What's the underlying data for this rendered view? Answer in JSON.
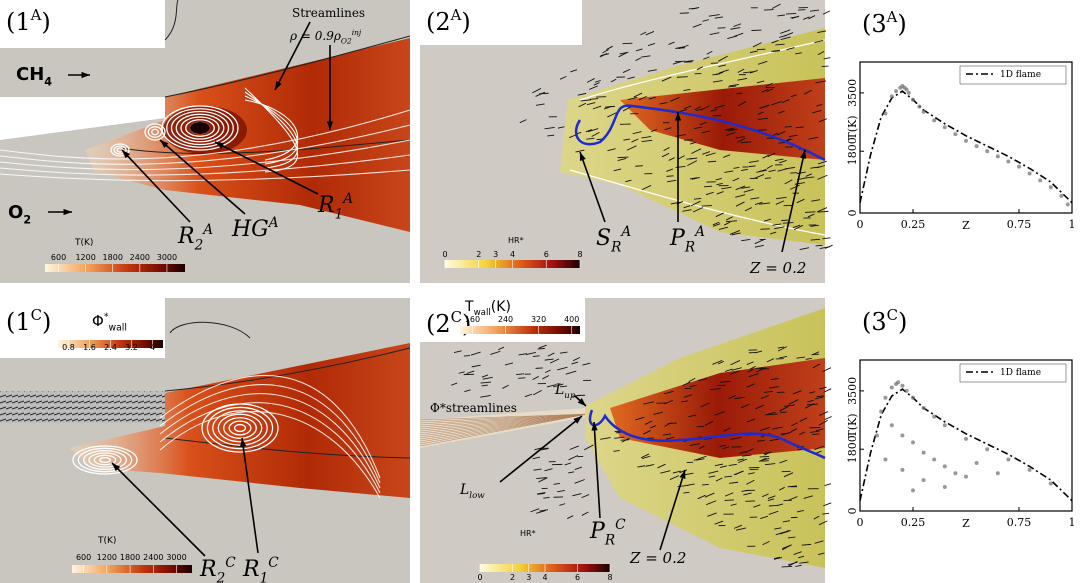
{
  "panels": [
    {
      "label": {
        "base": "(1",
        "sup": "A",
        "tail": ")"
      },
      "annotations": [
        {
          "base": "Streamlines"
        },
        {
          "base": "ρ = 0.9ρ",
          "sub": "O2",
          "sup": "inj"
        },
        {
          "base": "CH",
          "sub": "4"
        },
        {
          "base": "O",
          "sub": "2"
        },
        {
          "base": "R",
          "sub": "2",
          "sup": "A"
        },
        {
          "base": "HG",
          "sup": "A"
        },
        {
          "base": "R",
          "sub": "1",
          "sup": "A"
        }
      ],
      "colorbars": [
        {
          "title": {
            "base": "T(K)"
          },
          "lim": [
            300,
            3400
          ],
          "ticks": [
            600,
            1200,
            1800,
            2400,
            3000
          ]
        }
      ]
    },
    {
      "label": {
        "base": "(2",
        "sup": "A",
        "tail": ")"
      },
      "annotations": [
        {
          "base": "S",
          "sub": "R",
          "sup": "A"
        },
        {
          "base": "P",
          "sub": "R",
          "sup": "A"
        },
        {
          "base": "Z = 0.2"
        }
      ],
      "colorbars": [
        {
          "title": {
            "base": "HR*"
          },
          "lim": [
            0,
            8
          ],
          "ticks": [
            0,
            2,
            3,
            4,
            6,
            8
          ]
        }
      ]
    },
    {
      "label": {
        "base": "(1",
        "sup": "C",
        "tail": ")"
      },
      "annotations": [
        {
          "base": "R",
          "sub": "2",
          "sup": "C"
        },
        {
          "base": "R",
          "sub": "1",
          "sup": "C"
        }
      ],
      "colorbars": [
        {
          "title": {
            "base": "Φ",
            "sup": "*",
            "sub": "wall"
          },
          "lim": [
            0.4,
            4.4
          ],
          "ticks": [
            0.8,
            1.6,
            2.4,
            3.2,
            4
          ]
        },
        {
          "title": {
            "base": "T(K)"
          },
          "lim": [
            300,
            3400
          ],
          "ticks": [
            600,
            1200,
            1800,
            2400,
            3000
          ]
        }
      ]
    },
    {
      "label": {
        "base": "(2",
        "sup": "C",
        "tail": ")"
      },
      "annotations": [
        {
          "base": "Φ*streamlines"
        },
        {
          "base": "L",
          "sub": "up"
        },
        {
          "base": "L",
          "sub": "low"
        },
        {
          "base": "P",
          "sub": "R",
          "sup": "C"
        },
        {
          "base": "Z = 0.2"
        }
      ],
      "colorbars": [
        {
          "title": {
            "base": "T",
            "sub": "wall",
            "tail": "(K)"
          },
          "lim": [
            130,
            420
          ],
          "ticks": [
            160,
            240,
            320,
            400
          ]
        },
        {
          "title": {
            "base": "HR*"
          },
          "lim": [
            0,
            8
          ],
          "ticks": [
            0,
            2,
            3,
            4,
            6,
            8
          ]
        }
      ]
    }
  ],
  "chart_data": [
    {
      "type": "scatter",
      "label": {
        "base": "(3",
        "sup": "A",
        "tail": ")"
      },
      "xlabel": "Z",
      "ylabel": "T(K)",
      "xlim": [
        0,
        1
      ],
      "ylim": [
        0,
        4400
      ],
      "xticks": [
        0,
        0.25,
        0.75,
        1
      ],
      "yticks": [
        0,
        1800,
        3500
      ],
      "legend": "upper right",
      "series": [
        {
          "name": "1D flame",
          "style": "dash-dot",
          "color": "#000000",
          "x": [
            0,
            0.05,
            0.1,
            0.15,
            0.2,
            0.25,
            0.3,
            0.4,
            0.5,
            0.6,
            0.7,
            0.8,
            0.9,
            1
          ],
          "y": [
            300,
            1700,
            2800,
            3350,
            3550,
            3300,
            3000,
            2600,
            2250,
            1950,
            1650,
            1300,
            900,
            300
          ]
        },
        {
          "style": "points",
          "color": "#6e6e6e",
          "x": [
            0.12,
            0.15,
            0.17,
            0.19,
            0.2,
            0.21,
            0.22,
            0.23,
            0.25,
            0.28,
            0.3,
            0.35,
            0.4,
            0.45,
            0.5,
            0.55,
            0.6,
            0.65,
            0.7,
            0.75,
            0.8,
            0.85,
            0.9,
            0.95,
            0.98
          ],
          "y": [
            2900,
            3400,
            3550,
            3650,
            3700,
            3650,
            3600,
            3500,
            3300,
            3100,
            2950,
            2700,
            2500,
            2300,
            2100,
            1950,
            1800,
            1650,
            1500,
            1350,
            1150,
            950,
            750,
            500,
            250
          ]
        }
      ]
    },
    {
      "type": "scatter",
      "label": {
        "base": "(3",
        "sup": "C",
        "tail": ")"
      },
      "xlabel": "Z",
      "ylabel": "T(K)",
      "xlim": [
        0,
        1
      ],
      "ylim": [
        0,
        4400
      ],
      "xticks": [
        0,
        0.25,
        0.75,
        1
      ],
      "yticks": [
        0,
        1800,
        3500
      ],
      "legend": "upper right",
      "series": [
        {
          "name": "1D flame",
          "style": "dash-dot",
          "color": "#000000",
          "x": [
            0,
            0.05,
            0.1,
            0.15,
            0.2,
            0.25,
            0.3,
            0.4,
            0.5,
            0.6,
            0.7,
            0.8,
            0.9,
            1
          ],
          "y": [
            300,
            1700,
            2800,
            3350,
            3550,
            3300,
            3000,
            2600,
            2250,
            1950,
            1650,
            1300,
            900,
            300
          ]
        },
        {
          "style": "points",
          "color": "#6e6e6e",
          "x": [
            0.08,
            0.1,
            0.12,
            0.15,
            0.17,
            0.18,
            0.2,
            0.22,
            0.25,
            0.3,
            0.35,
            0.4,
            0.5,
            0.6,
            0.7,
            0.8,
            0.9,
            0.15,
            0.2,
            0.25,
            0.3,
            0.35,
            0.4,
            0.45,
            0.5,
            0.2,
            0.3,
            0.4,
            0.12,
            0.25,
            0.55,
            0.65
          ],
          "y": [
            2200,
            2900,
            3300,
            3600,
            3700,
            3750,
            3650,
            3500,
            3300,
            3000,
            2750,
            2500,
            2100,
            1800,
            1500,
            1200,
            800,
            2500,
            2200,
            2000,
            1700,
            1500,
            1300,
            1100,
            1000,
            1200,
            900,
            700,
            1500,
            600,
            1400,
            1100
          ]
        }
      ]
    }
  ]
}
